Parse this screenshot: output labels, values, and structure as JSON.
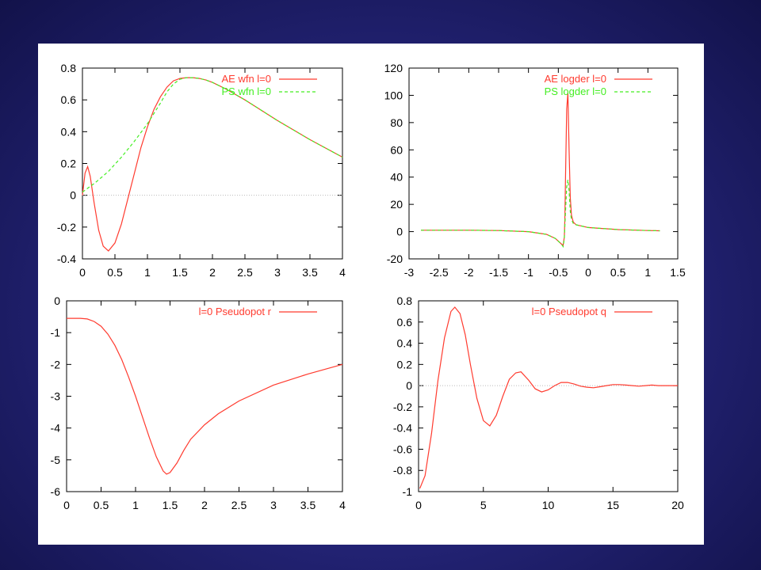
{
  "colors": {
    "ae": "#ff3b2f",
    "ps": "#44ee22",
    "overlap": "#a08a3c",
    "zero": "#bbbbbb"
  },
  "chart_data": [
    {
      "type": "line",
      "xlim": [
        0,
        4
      ],
      "ylim": [
        -0.4,
        0.8
      ],
      "xticks": [
        "0",
        "0.5",
        "1",
        "1.5",
        "2",
        "2.5",
        "3",
        "3.5",
        "4"
      ],
      "yticks": [
        "-0.4",
        "-0.2",
        "0",
        "0.2",
        "0.4",
        "0.6",
        "0.8"
      ],
      "legend_position": "top-right",
      "zero_line": true,
      "series": [
        {
          "name": "AE wfn l=0",
          "x": [
            0.0,
            0.04,
            0.08,
            0.12,
            0.18,
            0.25,
            0.32,
            0.4,
            0.5,
            0.6,
            0.7,
            0.8,
            0.9,
            1.0,
            1.1,
            1.2,
            1.3,
            1.4,
            1.5,
            1.6,
            1.7,
            1.8,
            1.9,
            2.0,
            2.2,
            2.5,
            3.0,
            3.5,
            4.0
          ],
          "y": [
            0.0,
            0.14,
            0.18,
            0.12,
            -0.05,
            -0.22,
            -0.32,
            -0.35,
            -0.3,
            -0.18,
            -0.02,
            0.14,
            0.3,
            0.43,
            0.54,
            0.62,
            0.68,
            0.72,
            0.735,
            0.74,
            0.74,
            0.735,
            0.725,
            0.71,
            0.67,
            0.6,
            0.47,
            0.35,
            0.24
          ]
        },
        {
          "name": "PS wfn l=0",
          "x": [
            0.0,
            0.2,
            0.4,
            0.6,
            0.8,
            1.0,
            1.2,
            1.3,
            1.4,
            1.5,
            1.6,
            1.7,
            1.8,
            1.9,
            2.0,
            2.2,
            2.5,
            3.0,
            3.5,
            4.0
          ],
          "y": [
            0.02,
            0.08,
            0.15,
            0.24,
            0.34,
            0.45,
            0.58,
            0.65,
            0.7,
            0.73,
            0.74,
            0.74,
            0.735,
            0.725,
            0.71,
            0.67,
            0.6,
            0.47,
            0.35,
            0.24
          ]
        }
      ]
    },
    {
      "type": "line",
      "xlim": [
        -3,
        1.5
      ],
      "ylim": [
        -20,
        120
      ],
      "xticks": [
        "-3",
        "-2.5",
        "-2",
        "-1.5",
        "-1",
        "-0.5",
        "0",
        "0.5",
        "1",
        "1.5"
      ],
      "yticks": [
        "-20",
        "0",
        "20",
        "40",
        "60",
        "80",
        "100",
        "120"
      ],
      "legend_position": "top-right",
      "zero_line": false,
      "series": [
        {
          "name": "AE logder l=0",
          "x": [
            -2.8,
            -2.0,
            -1.5,
            -1.0,
            -0.7,
            -0.55,
            -0.45,
            -0.42,
            -0.4,
            -0.39,
            -0.38,
            -0.36,
            -0.34,
            -0.32,
            -0.3,
            -0.28,
            -0.25,
            -0.2,
            0.0,
            0.5,
            1.0,
            1.2
          ],
          "y": [
            1,
            1,
            0.8,
            0,
            -2,
            -5,
            -9,
            -10,
            -4,
            10,
            40,
            90,
            102,
            60,
            25,
            12,
            7,
            5,
            3,
            1.5,
            0.8,
            0.6
          ]
        },
        {
          "name": "PS logder l=0",
          "x": [
            -2.8,
            -2.0,
            -1.5,
            -1.0,
            -0.7,
            -0.55,
            -0.45,
            -0.42,
            -0.4,
            -0.38,
            -0.36,
            -0.34,
            -0.32,
            -0.3,
            -0.28,
            -0.25,
            -0.2,
            0.0,
            0.5,
            1.0,
            1.2
          ],
          "y": [
            1,
            1,
            0.8,
            0,
            -2,
            -5,
            -9,
            -11,
            -5,
            15,
            33,
            38,
            30,
            15,
            9,
            6,
            5,
            3,
            1.5,
            0.8,
            0.6
          ]
        }
      ]
    },
    {
      "type": "line",
      "xlim": [
        0,
        4
      ],
      "ylim": [
        -6,
        0
      ],
      "xticks": [
        "0",
        "0.5",
        "1",
        "1.5",
        "2",
        "2.5",
        "3",
        "3.5",
        "4"
      ],
      "yticks": [
        "-6",
        "-5",
        "-4",
        "-3",
        "-2",
        "-1",
        "0"
      ],
      "legend_position": "top-right",
      "zero_line": false,
      "series": [
        {
          "name": "l=0 Pseudopot r",
          "x": [
            0.0,
            0.2,
            0.3,
            0.4,
            0.5,
            0.6,
            0.7,
            0.8,
            0.9,
            1.0,
            1.1,
            1.2,
            1.3,
            1.4,
            1.45,
            1.5,
            1.6,
            1.7,
            1.8,
            2.0,
            2.2,
            2.5,
            3.0,
            3.5,
            4.0
          ],
          "y": [
            -0.55,
            -0.55,
            -0.57,
            -0.65,
            -0.8,
            -1.05,
            -1.4,
            -1.85,
            -2.4,
            -3.0,
            -3.65,
            -4.3,
            -4.9,
            -5.35,
            -5.45,
            -5.4,
            -5.1,
            -4.7,
            -4.35,
            -3.9,
            -3.55,
            -3.15,
            -2.65,
            -2.3,
            -2.0
          ]
        }
      ]
    },
    {
      "type": "line",
      "xlim": [
        0,
        20
      ],
      "ylim": [
        -1,
        0.8
      ],
      "xticks": [
        "0",
        "5",
        "10",
        "15",
        "20"
      ],
      "yticks": [
        "-1",
        "-0.8",
        "-0.6",
        "-0.4",
        "-0.2",
        "0",
        "0.2",
        "0.4",
        "0.6",
        "0.8"
      ],
      "legend_position": "top-right",
      "zero_line": true,
      "series": [
        {
          "name": "l=0 Pseudopot q",
          "x": [
            0.1,
            0.5,
            1.0,
            1.5,
            2.0,
            2.5,
            2.8,
            3.2,
            3.6,
            4.0,
            4.5,
            5.0,
            5.5,
            6.0,
            6.5,
            7.0,
            7.5,
            7.9,
            8.5,
            9.0,
            9.5,
            10.0,
            10.5,
            11.0,
            11.5,
            12.0,
            12.5,
            13.0,
            13.5,
            14.0,
            14.5,
            15.0,
            15.5,
            16.0,
            16.5,
            17.0,
            17.5,
            18.0,
            18.5,
            19.0,
            19.5,
            20.0
          ],
          "y": [
            -0.97,
            -0.85,
            -0.45,
            0.05,
            0.45,
            0.7,
            0.74,
            0.68,
            0.48,
            0.2,
            -0.12,
            -0.33,
            -0.38,
            -0.28,
            -0.1,
            0.06,
            0.12,
            0.13,
            0.05,
            -0.03,
            -0.06,
            -0.04,
            0.0,
            0.03,
            0.03,
            0.015,
            -0.005,
            -0.015,
            -0.02,
            -0.01,
            0.0,
            0.01,
            0.01,
            0.005,
            0.0,
            -0.005,
            0.0,
            0.005,
            0.0,
            0.0,
            0.0,
            0.0
          ]
        }
      ]
    }
  ]
}
